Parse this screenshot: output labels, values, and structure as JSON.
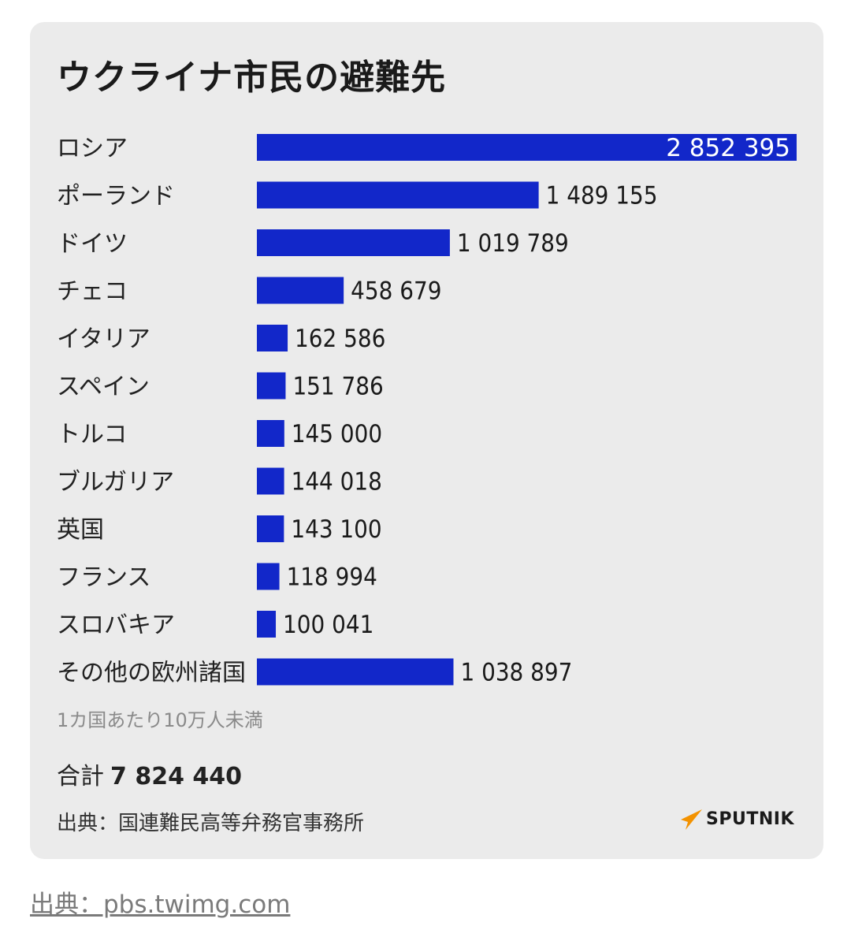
{
  "chart_data": {
    "type": "bar",
    "orientation": "horizontal",
    "title": "ウクライナ市民の避難先",
    "categories": [
      "ロシア",
      "ポーランド",
      "ドイツ",
      "チェコ",
      "イタリア",
      "スペイン",
      "トルコ",
      "ブルガリア",
      "英国",
      "フランス",
      "スロバキア",
      "その他の欧州諸国"
    ],
    "values": [
      2852395,
      1489155,
      1019789,
      458679,
      162586,
      151786,
      145000,
      144018,
      143100,
      118994,
      100041,
      1038897
    ],
    "value_labels": [
      "2 852 395",
      "1 489 155",
      "1 019 789",
      "458 679",
      "162 586",
      "151 786",
      "145 000",
      "144 018",
      "143 100",
      "118 994",
      "100 041",
      "1 038 897"
    ],
    "bar_color": "#1227c9",
    "grid": false
  },
  "note": "1カ国あたり10万人未満",
  "total": {
    "label": "合計",
    "value": "7 824 440"
  },
  "source": "出典：国連難民高等弁務官事務所",
  "logo": {
    "text": "SPUTNIK",
    "icon": "sputnik-logo-icon",
    "accent_color": "#f39200"
  },
  "page_credit": "出典：pbs.twimg.com"
}
